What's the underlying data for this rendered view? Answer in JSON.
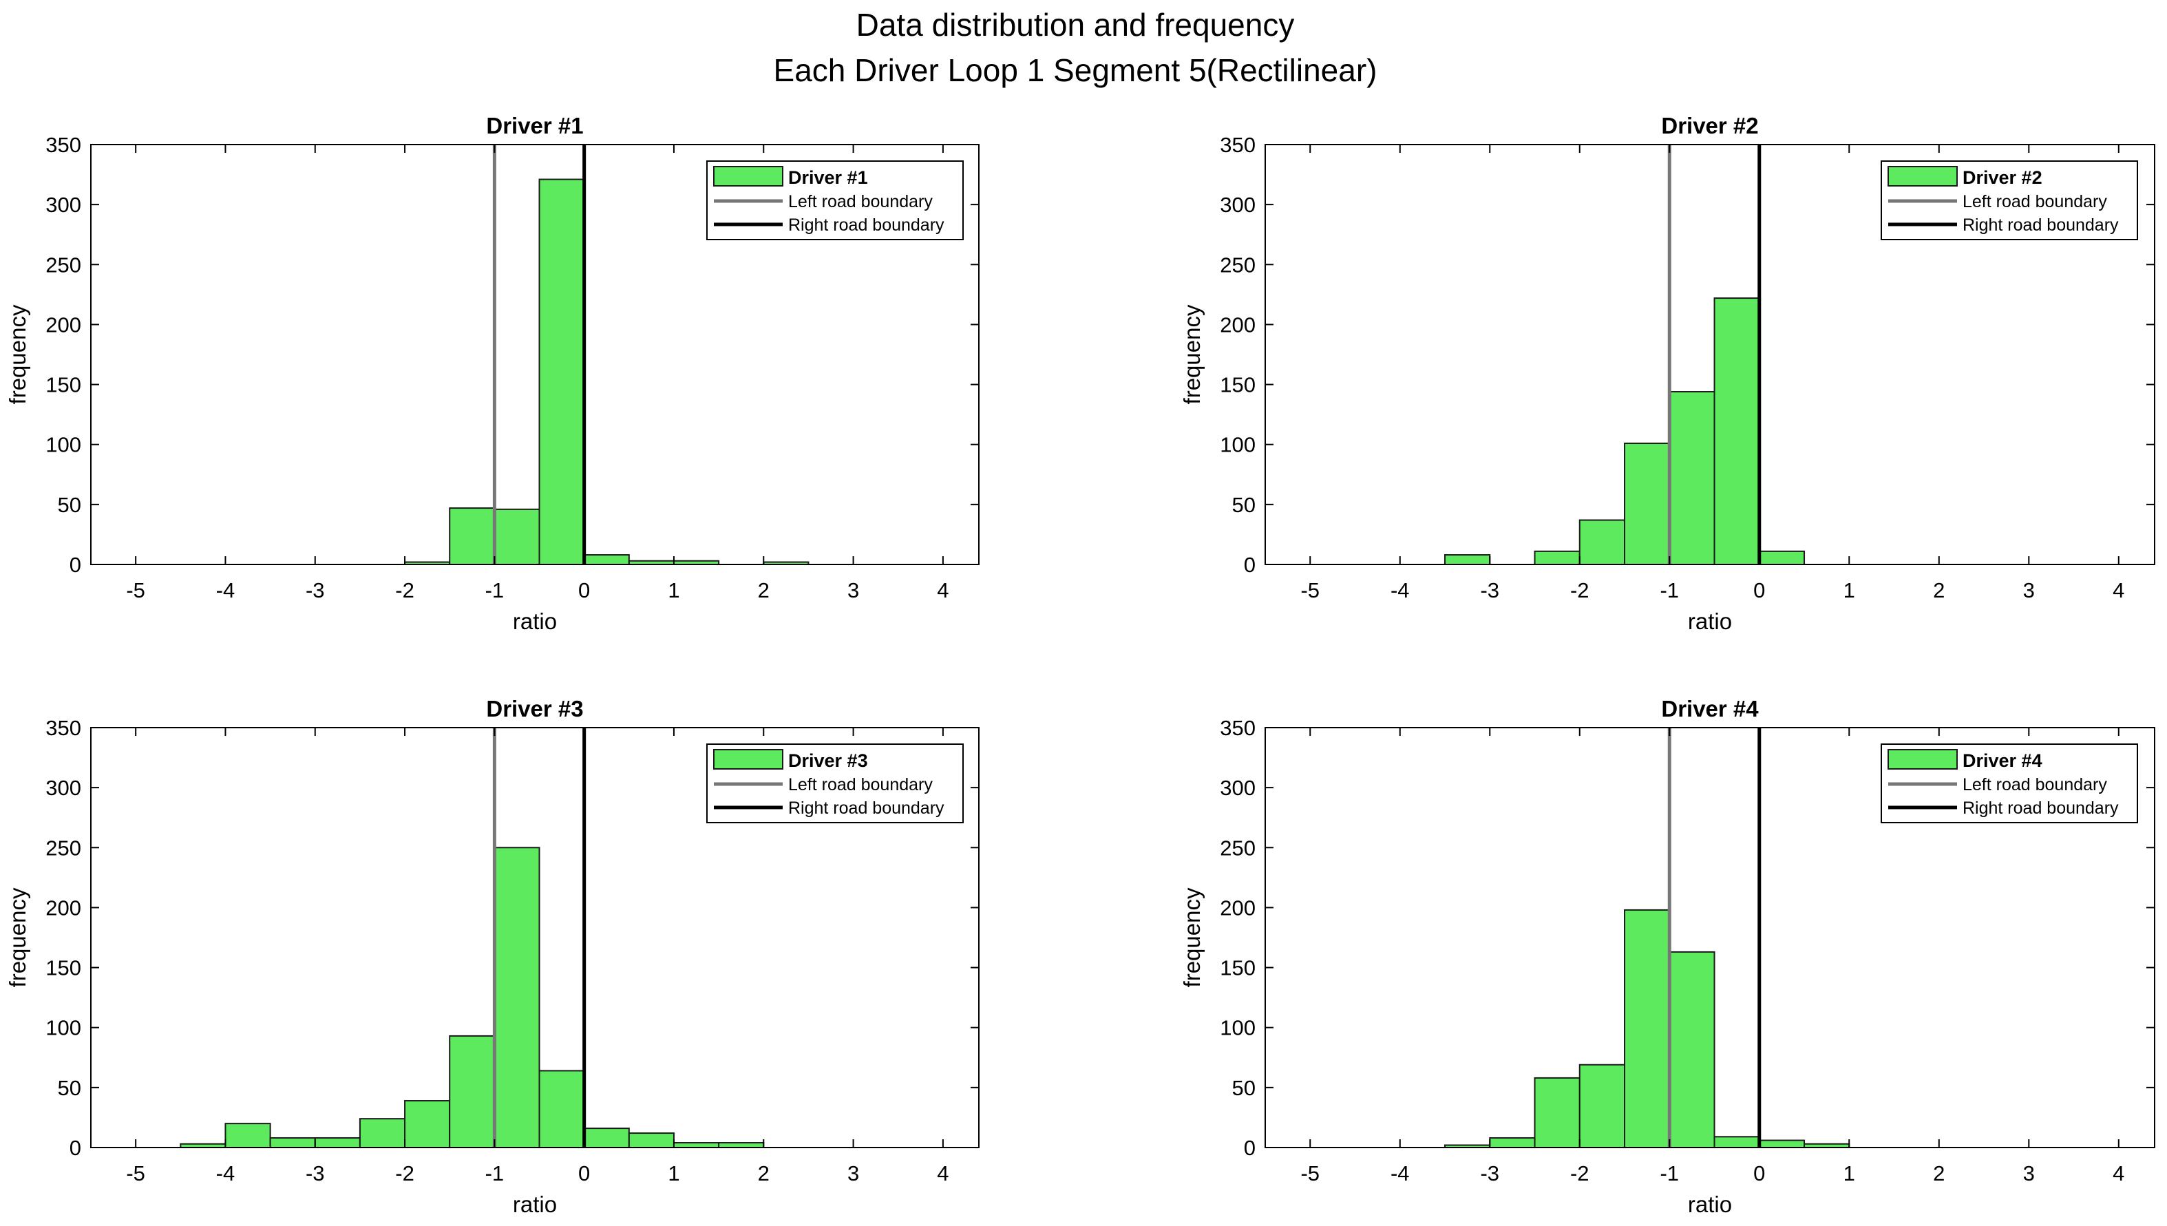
{
  "figure": {
    "title_line1": "Data distribution and frequency",
    "title_line2": "Each Driver Loop 1 Segment 5(Rectilinear)"
  },
  "colors": {
    "bar_fill": "#5eea5e",
    "bar_edge": "#1a1a1a",
    "left_boundary": "#777777",
    "right_boundary": "#000000",
    "axis": "#000000"
  },
  "chart_data": [
    {
      "type": "bar",
      "title": "Driver #1",
      "xlabel": "ratio",
      "ylabel": "frequency",
      "xlim": [
        -5.5,
        4.4
      ],
      "ylim": [
        0,
        350
      ],
      "xticks": [
        -5,
        -4,
        -3,
        -2,
        -1,
        0,
        1,
        2,
        3,
        4
      ],
      "yticks": [
        0,
        50,
        100,
        150,
        200,
        250,
        300,
        350
      ],
      "bin_edges": [
        -2.0,
        -1.5,
        -1.0,
        -0.5,
        0.0,
        0.5,
        1.0,
        1.5,
        2.0,
        2.5
      ],
      "values": [
        2,
        47,
        46,
        321,
        8,
        3,
        3,
        0,
        2
      ],
      "left_boundary_x": -1,
      "right_boundary_x": 0,
      "legend": [
        "Driver #1",
        "Left road boundary",
        "Right road boundary"
      ]
    },
    {
      "type": "bar",
      "title": "Driver #2",
      "xlabel": "ratio",
      "ylabel": "frequency",
      "xlim": [
        -5.5,
        4.4
      ],
      "ylim": [
        0,
        350
      ],
      "xticks": [
        -5,
        -4,
        -3,
        -2,
        -1,
        0,
        1,
        2,
        3,
        4
      ],
      "yticks": [
        0,
        50,
        100,
        150,
        200,
        250,
        300,
        350
      ],
      "bin_edges": [
        -3.5,
        -3.0,
        -2.5,
        -2.0,
        -1.5,
        -1.0,
        -0.5,
        0.0,
        0.5
      ],
      "values": [
        8,
        0,
        11,
        37,
        101,
        144,
        222,
        11
      ],
      "left_boundary_x": -1,
      "right_boundary_x": 0,
      "legend": [
        "Driver #2",
        "Left road boundary",
        "Right road boundary"
      ]
    },
    {
      "type": "bar",
      "title": "Driver #3",
      "xlabel": "ratio",
      "ylabel": "frequency",
      "xlim": [
        -5.5,
        4.4
      ],
      "ylim": [
        0,
        350
      ],
      "xticks": [
        -5,
        -4,
        -3,
        -2,
        -1,
        0,
        1,
        2,
        3,
        4
      ],
      "yticks": [
        0,
        50,
        100,
        150,
        200,
        250,
        300,
        350
      ],
      "bin_edges": [
        -4.5,
        -4.0,
        -3.5,
        -3.0,
        -2.5,
        -2.0,
        -1.5,
        -1.0,
        -0.5,
        0.0,
        0.5,
        1.0,
        1.5,
        2.0
      ],
      "values": [
        3,
        20,
        8,
        8,
        24,
        39,
        93,
        250,
        64,
        16,
        12,
        4,
        4
      ],
      "left_boundary_x": -1,
      "right_boundary_x": 0,
      "legend": [
        "Driver #3",
        "Left road boundary",
        "Right road boundary"
      ]
    },
    {
      "type": "bar",
      "title": "Driver #4",
      "xlabel": "ratio",
      "ylabel": "frequency",
      "xlim": [
        -5.5,
        4.4
      ],
      "ylim": [
        0,
        350
      ],
      "xticks": [
        -5,
        -4,
        -3,
        -2,
        -1,
        0,
        1,
        2,
        3,
        4
      ],
      "yticks": [
        0,
        50,
        100,
        150,
        200,
        250,
        300,
        350
      ],
      "bin_edges": [
        -3.5,
        -3.0,
        -2.5,
        -2.0,
        -1.5,
        -1.0,
        -0.5,
        0.0,
        0.5,
        1.0
      ],
      "values": [
        2,
        8,
        58,
        69,
        198,
        163,
        9,
        6,
        3
      ],
      "left_boundary_x": -1,
      "right_boundary_x": 0,
      "legend": [
        "Driver #4",
        "Left road boundary",
        "Right road boundary"
      ]
    }
  ]
}
